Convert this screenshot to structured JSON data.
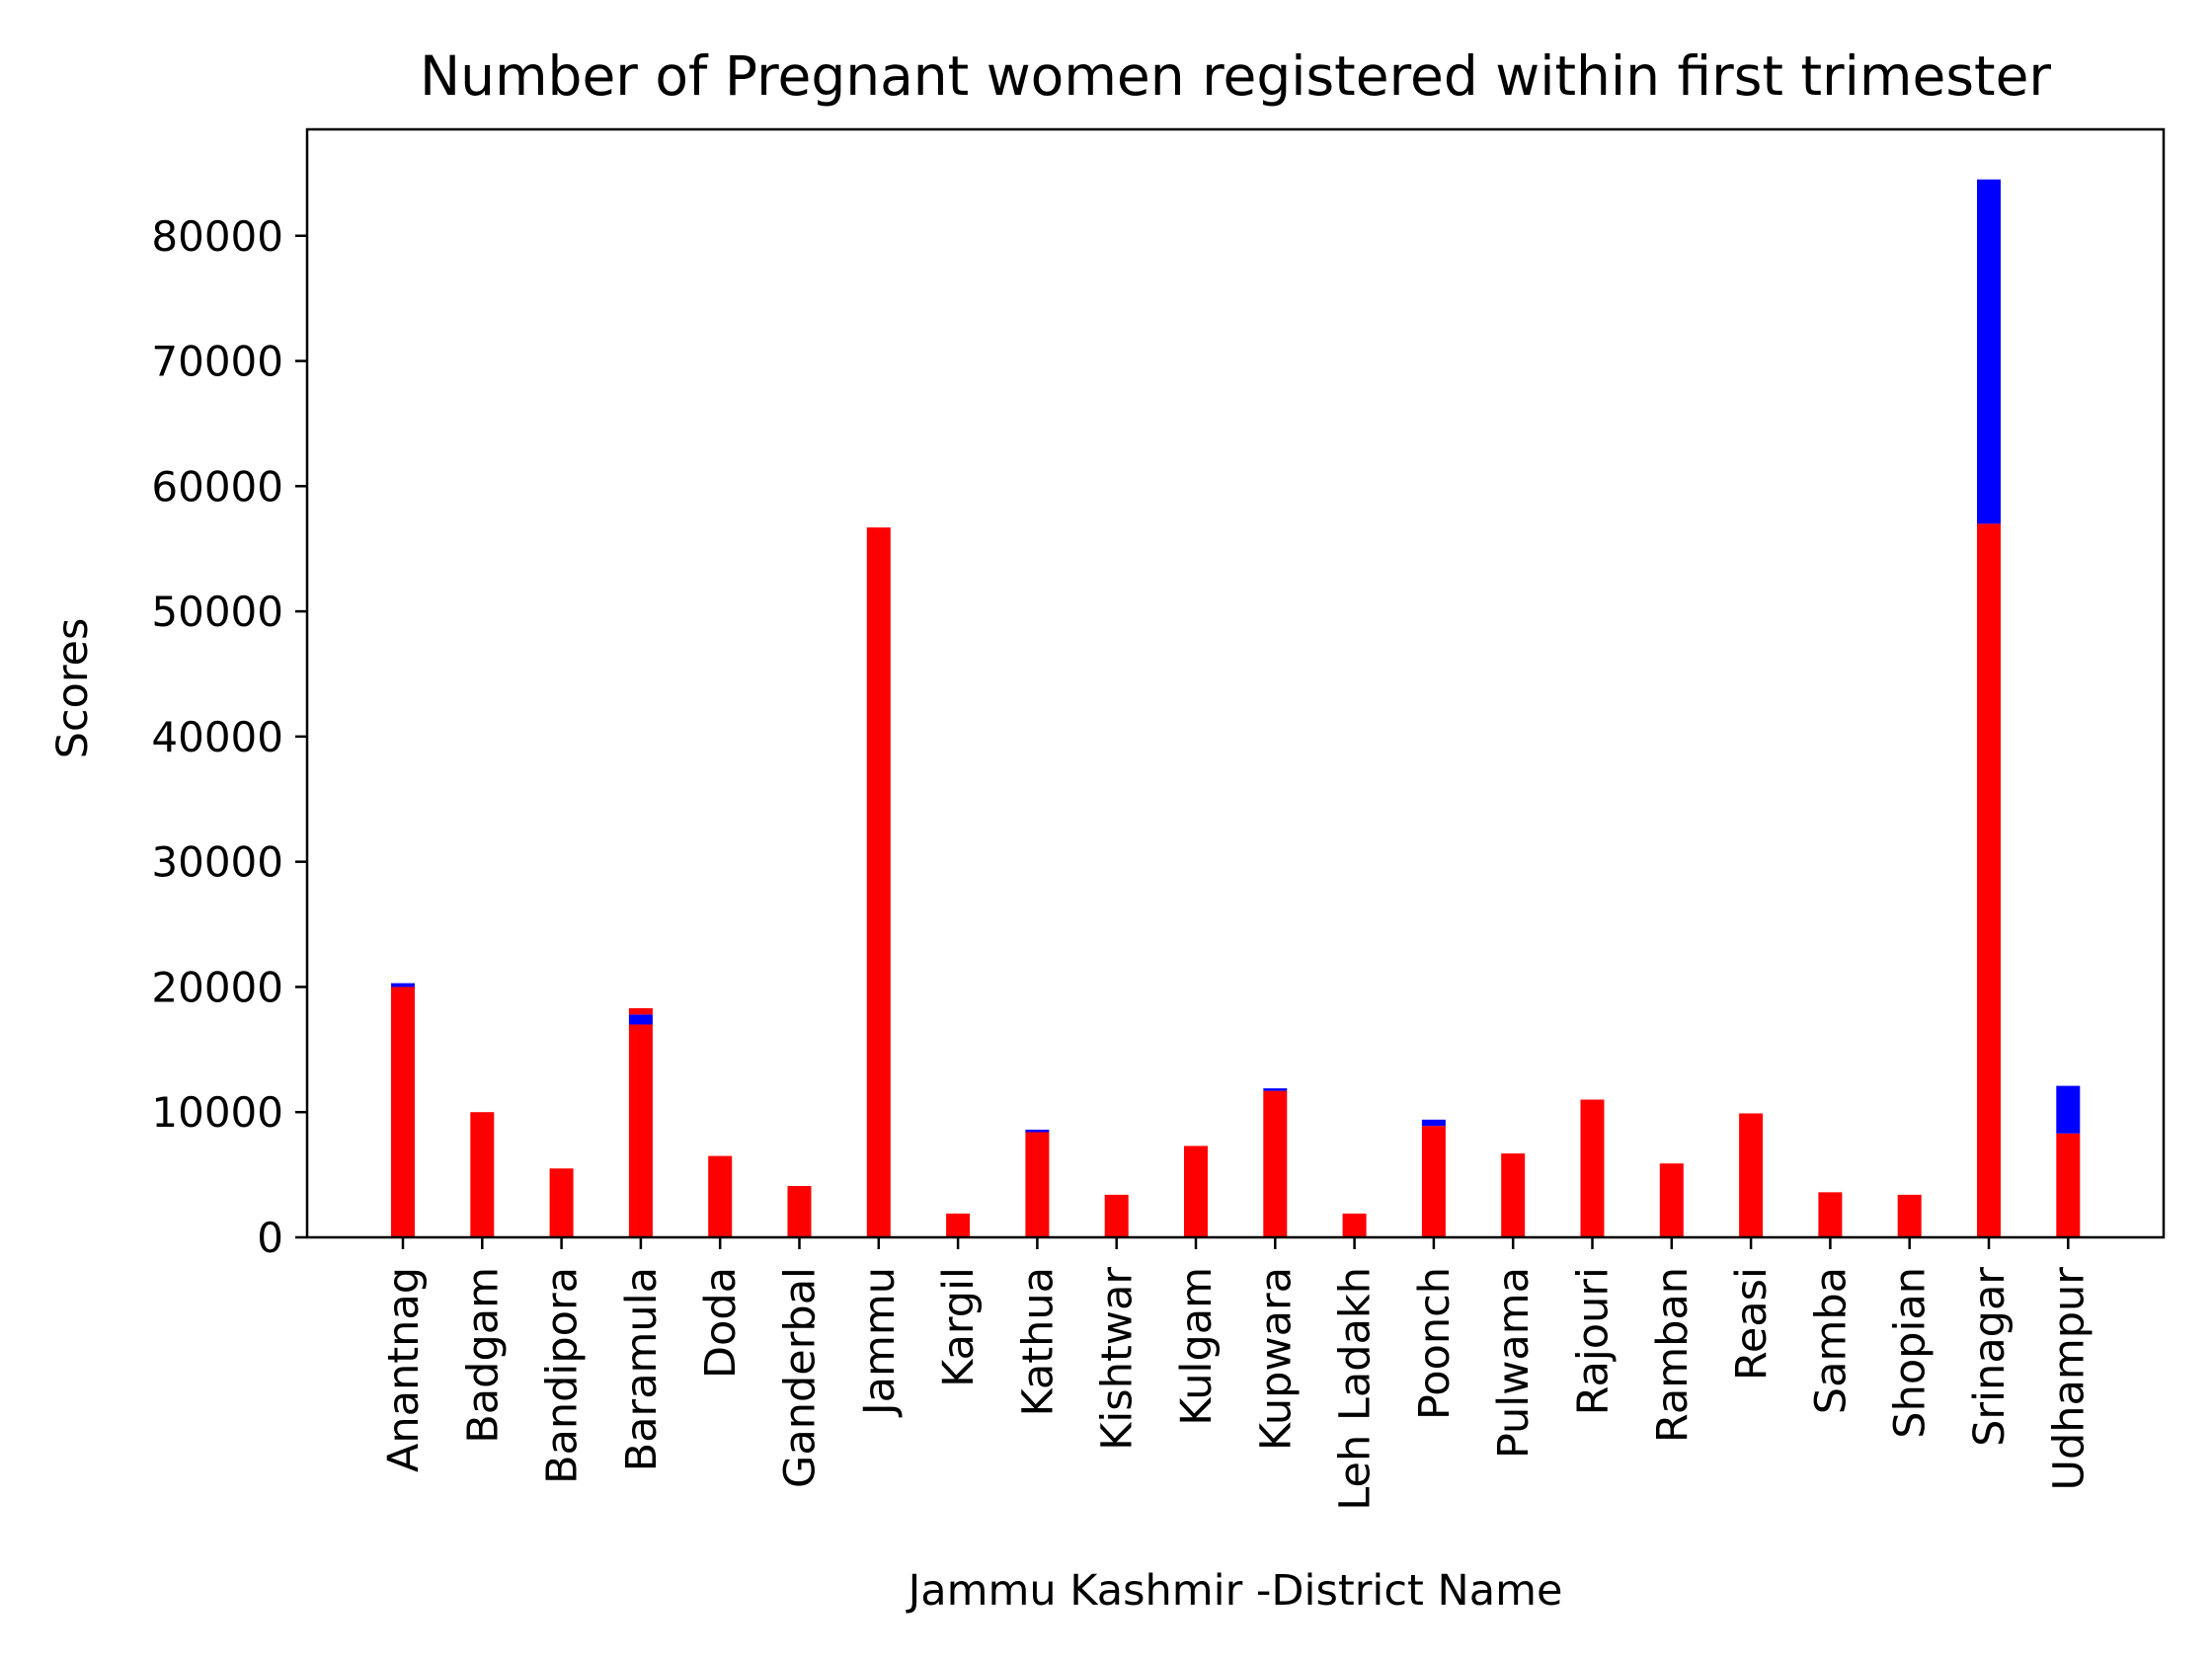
{
  "chart_data": {
    "type": "bar",
    "title": "Number of Pregnant women registered within first trimester",
    "xlabel": "Jammu Kashmir -District Name",
    "ylabel": "Scores",
    "ylim": [
      0,
      88500
    ],
    "yticks": [
      0,
      10000,
      20000,
      30000,
      40000,
      50000,
      60000,
      70000,
      80000
    ],
    "grid": false,
    "stacked": true,
    "categories": [
      "Anantnag",
      "Badgam",
      "Bandipora",
      "Baramula",
      "Doda",
      "Ganderbal",
      "Jammu",
      "Kargil",
      "Kathua",
      "Kishtwar",
      "Kulgam",
      "Kupwara",
      "Leh Ladakh",
      "Poonch",
      "Pulwama",
      "Rajouri",
      "Ramban",
      "Reasi",
      "Samba",
      "Shopian",
      "Srinagar",
      "Udhampur"
    ],
    "series": [
      {
        "color": "#ff0000",
        "values": [
          20000,
          10000,
          5500,
          17000,
          6500,
          4100,
          56700,
          1900,
          8400,
          3400,
          7300,
          11700,
          1900,
          8900,
          6700,
          11000,
          5900,
          9900,
          3600,
          3400,
          57000,
          8300
        ]
      },
      {
        "color": "#0000ff",
        "values": [
          300,
          0,
          0,
          800,
          0,
          0,
          0,
          0,
          200,
          0,
          0,
          200,
          0,
          500,
          0,
          0,
          0,
          0,
          0,
          0,
          27500,
          3800
        ]
      },
      {
        "color": "#ff0000",
        "values": [
          0,
          0,
          0,
          500,
          0,
          0,
          0,
          0,
          0,
          0,
          0,
          0,
          0,
          0,
          0,
          0,
          0,
          0,
          0,
          0,
          0,
          0
        ]
      }
    ]
  }
}
